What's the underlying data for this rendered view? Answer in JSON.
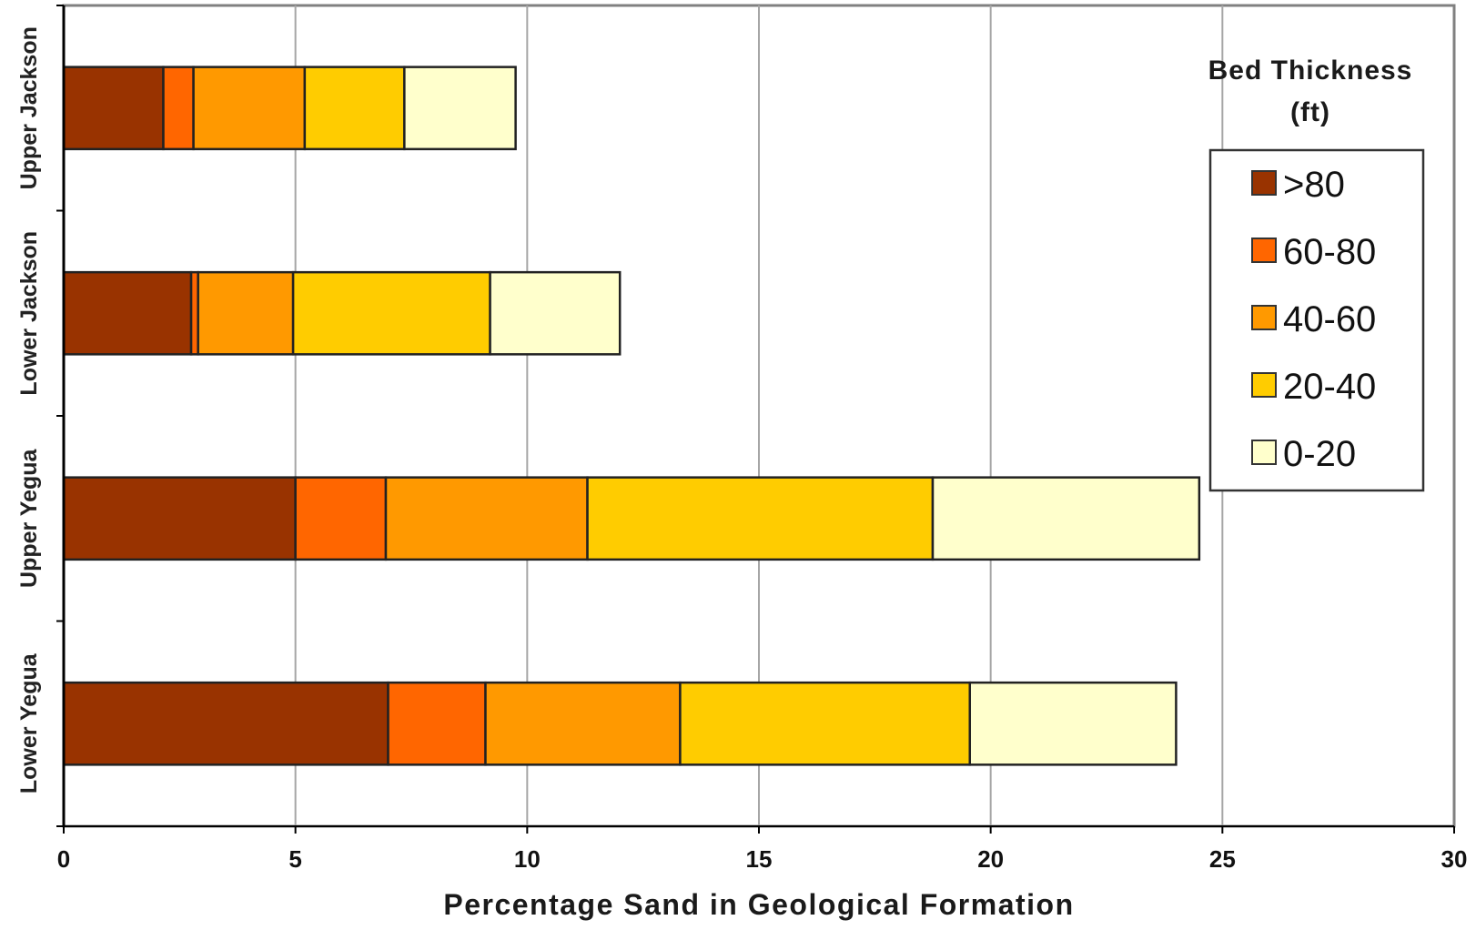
{
  "chart_data": {
    "type": "bar",
    "orientation": "horizontal",
    "stacked": true,
    "title": "",
    "xlabel": "Percentage Sand in Geological Formation",
    "ylabel": "",
    "xlim": [
      0,
      30
    ],
    "xticks": [
      "0",
      "5",
      "10",
      "15",
      "20",
      "25",
      "30"
    ],
    "grid": "vertical",
    "categories": [
      "Upper Jackson",
      "Lower Jackson",
      "Upper Yegua",
      "Lower Yegua"
    ],
    "legend": {
      "title_line1": "Bed Thickness",
      "title_line2": "(ft)",
      "placement": "right"
    },
    "series": [
      {
        "name": ">80",
        "color": "#993300",
        "values": [
          2.15,
          2.75,
          5.0,
          7.0
        ]
      },
      {
        "name": "60-80",
        "color": "#ff6600",
        "values": [
          0.65,
          0.15,
          1.95,
          2.1
        ]
      },
      {
        "name": "40-60",
        "color": "#ff9900",
        "values": [
          2.4,
          2.05,
          4.35,
          4.2
        ]
      },
      {
        "name": "20-40",
        "color": "#ffcc00",
        "values": [
          2.15,
          4.25,
          7.45,
          6.25
        ]
      },
      {
        "name": "0-20",
        "color": "#ffffcc",
        "values": [
          2.4,
          2.8,
          5.75,
          4.45
        ]
      }
    ]
  }
}
